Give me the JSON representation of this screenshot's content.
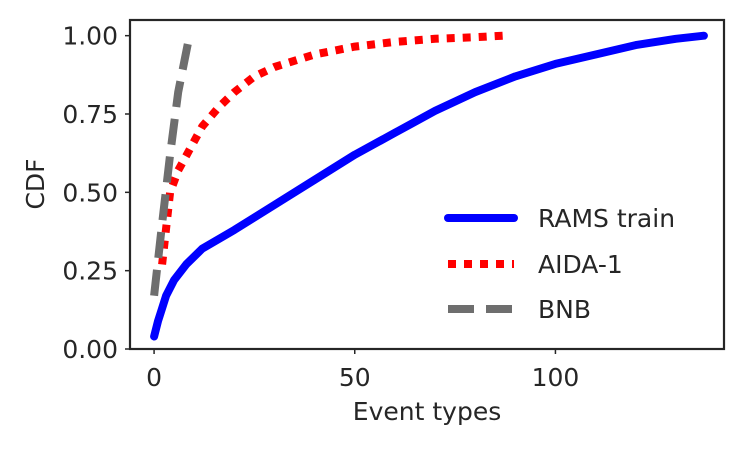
{
  "chart_data": {
    "type": "line",
    "title": "",
    "xlabel": "Event types",
    "ylabel": "CDF",
    "xlim": [
      -6,
      142
    ],
    "ylim": [
      0,
      1.05
    ],
    "xticks": [
      0,
      50,
      100
    ],
    "yticks": [
      0.0,
      0.25,
      0.5,
      0.75,
      1.0
    ],
    "xtick_labels": [
      "0",
      "50",
      "100"
    ],
    "ytick_labels": [
      "0.00",
      "0.25",
      "0.50",
      "0.75",
      "1.00"
    ],
    "grid": false,
    "legend_position": "lower-right",
    "series": [
      {
        "name": "RAMS train",
        "color": "#0000ff",
        "style": "solid",
        "x": [
          0,
          1,
          2,
          3,
          5,
          8,
          12,
          20,
          30,
          40,
          50,
          60,
          70,
          80,
          90,
          100,
          110,
          120,
          130,
          137
        ],
        "y": [
          0.04,
          0.09,
          0.13,
          0.17,
          0.22,
          0.27,
          0.32,
          0.38,
          0.46,
          0.54,
          0.62,
          0.69,
          0.76,
          0.82,
          0.87,
          0.91,
          0.94,
          0.97,
          0.99,
          1.0
        ]
      },
      {
        "name": "AIDA-1",
        "color": "#ff0000",
        "style": "dotted",
        "x": [
          2,
          4,
          6,
          9,
          12,
          16,
          20,
          25,
          30,
          40,
          50,
          60,
          70,
          80,
          87
        ],
        "y": [
          0.27,
          0.5,
          0.57,
          0.64,
          0.71,
          0.77,
          0.82,
          0.87,
          0.9,
          0.94,
          0.965,
          0.98,
          0.99,
          0.995,
          1.0
        ]
      },
      {
        "name": "BNB",
        "color": "#6e6e6e",
        "style": "dashed",
        "x": [
          0,
          2,
          4,
          6,
          8.5
        ],
        "y": [
          0.17,
          0.4,
          0.62,
          0.82,
          0.98
        ]
      }
    ]
  }
}
